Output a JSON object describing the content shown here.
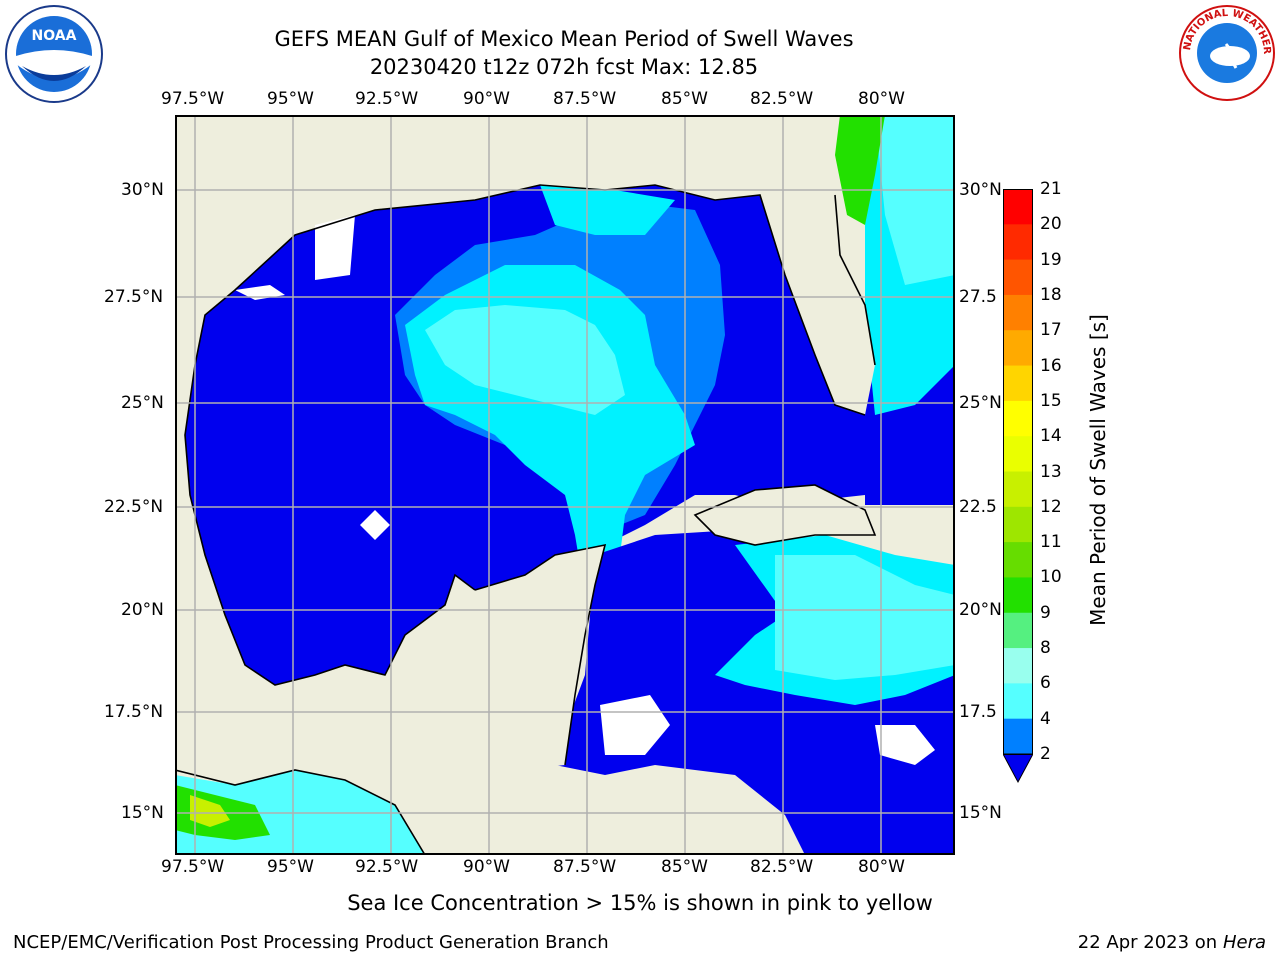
{
  "title_line1": "GEFS MEAN Gulf of Mexico Mean Period of Swell Waves",
  "title_line2": "20230420 t12z 072h fcst   Max: 12.85",
  "lon_labels": [
    "97.5°W",
    "95°W",
    "92.5°W",
    "90°W",
    "87.5°W",
    "85°W",
    "82.5°W",
    "80°W"
  ],
  "lat_labels_left": [
    "30°N",
    "27.5°N",
    "25°N",
    "22.5°N",
    "20°N",
    "17.5°N",
    "15°N"
  ],
  "lat_labels_right": [
    "30°N",
    "27.5",
    "25°N",
    "22.5",
    "20°N",
    "17.5",
    "15°N"
  ],
  "colorbar": {
    "label": "Mean Period of Swell Waves [s]",
    "ticks": [
      "21",
      "20",
      "19",
      "18",
      "17",
      "16",
      "15",
      "14",
      "13",
      "12",
      "11",
      "10",
      "9",
      "8",
      "6",
      "4",
      "2"
    ],
    "colors": [
      "#ff0000",
      "#ff2a00",
      "#ff5500",
      "#ff8000",
      "#ffaa00",
      "#ffd500",
      "#ffff00",
      "#eaff00",
      "#c8f000",
      "#9ee600",
      "#66dd00",
      "#22e000",
      "#55f080",
      "#99ffee",
      "#55ffff",
      "#00f2ff",
      "#0080ff"
    ],
    "extend_color": "#0000ee"
  },
  "map_colors": {
    "land": "#eeeedd",
    "swell_2_4": "#0000ee",
    "swell_4_6": "#0080ff",
    "swell_6_8": "#00f2ff",
    "swell_8_9": "#55ffff",
    "swell_9_10": "#99ffee",
    "swell_10_11": "#22e000",
    "swell_12_13": "#c8f000"
  },
  "ice_note": "Sea Ice Concentration > 15% is shown in pink to yellow",
  "footer_left": "NCEP/EMC/Verification Post Processing Product Generation Branch",
  "footer_date": "22 Apr 2023 on",
  "footer_system": "Hera",
  "noaa_logo_text": "NOAA",
  "nws_logo_text": "NATIONAL WEATHER SERVICE"
}
